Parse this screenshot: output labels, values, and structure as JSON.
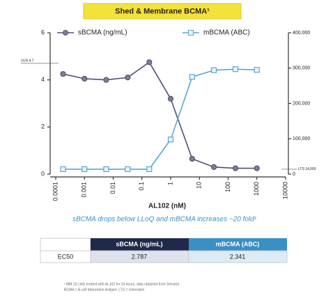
{
  "chart_data": {
    "type": "line",
    "title": "Shed & Membrane BCMA¹",
    "subtitle": "sBCMA drops below LLoQ and mBCMA increases ~20 fold¹",
    "x_label": "AL102 (nM)",
    "x_scale": "log",
    "x": [
      0.00018,
      0.001,
      0.0057,
      0.032,
      0.18,
      1,
      5.6,
      32,
      180,
      1000
    ],
    "xlim": [
      0.0001,
      10000
    ],
    "xticks": [
      0.0001,
      0.001,
      0.01,
      0.1,
      1,
      10,
      100,
      1000,
      10000
    ],
    "ylim": [
      0,
      6
    ],
    "yticks": [
      0,
      2,
      4,
      6
    ],
    "y2lim": [
      0,
      400000
    ],
    "y2ticks": [
      {
        "value": 0,
        "label": "0"
      },
      {
        "value": 100000,
        "label": "100,000"
      },
      {
        "value": 200000,
        "label": "200,000"
      },
      {
        "value": 300000,
        "label": "300,000"
      },
      {
        "value": 400000,
        "label": "400,000"
      }
    ],
    "series": [
      {
        "name": "sBCMA (ng/mL)",
        "color": "#4d5170",
        "marker": "circle",
        "axis": "y",
        "values": [
          4.25,
          4.05,
          4.0,
          4.1,
          4.75,
          3.2,
          0.65,
          0.3,
          0.25,
          0.25
        ]
      },
      {
        "name": "mBCMA (ABC)",
        "color": "#5ba6cf",
        "marker": "square",
        "axis": "y2",
        "values": [
          14000,
          14000,
          14000,
          14000,
          14000,
          98000,
          275000,
          294000,
          297000,
          295000
        ]
      }
    ],
    "annotations": [
      {
        "text": "ULN 4.7",
        "value": 4.7,
        "axis": "y"
      },
      {
        "text": "LTS 14,000",
        "value": 14000,
        "axis": "y2"
      }
    ]
  },
  "table": {
    "header": [
      "sBCMA (ng/mL)",
      "mBCMA (ABC)"
    ],
    "rows": [
      [
        "EC50",
        "2.787",
        "2.341"
      ]
    ]
  },
  "footnotes": [
    "¹ MM.1S cells treated with AL102 for 24 hours; data obtained from Selvaria",
    "BCMA = B-cell Maturation Antigen; LTS = Untreated"
  ]
}
